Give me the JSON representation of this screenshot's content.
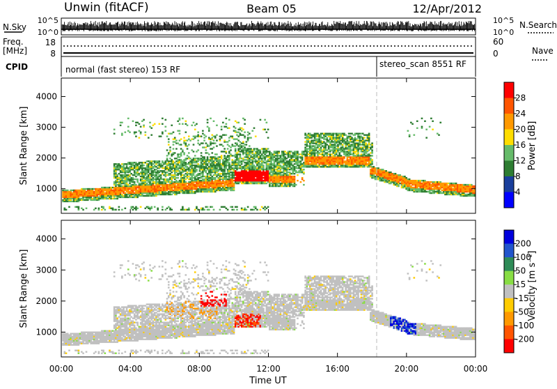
{
  "header": {
    "radar": "Unwin (fitACF)",
    "beam": "Beam 05",
    "date": "12/Apr/2012"
  },
  "status": {
    "nsky_label": "N.Sky",
    "nsky_ticks": [
      "10^5",
      "10^0"
    ],
    "nsearch_label": "N.Search",
    "freq_label_1": "Freq.",
    "freq_label_2": "[MHz]",
    "freq_ticks": [
      "18",
      "8"
    ],
    "nave_ticks": [
      "60",
      "0"
    ],
    "nave_label": "Nave",
    "cpid_label": "CPID",
    "cpid_segments": [
      {
        "label": "normal (fast stereo) 153 RF",
        "start_hour": 0
      },
      {
        "label": "stereo_scan 8551 RF",
        "start_hour": 18
      }
    ]
  },
  "chart_data": [
    {
      "type": "heatmap",
      "name": "power-panel",
      "ylabel": "Slant Range [km]",
      "x_range_hours": [
        0,
        24
      ],
      "ylim": [
        200,
        4600
      ],
      "yticks": [
        1000,
        2000,
        3000,
        4000
      ],
      "colorbar_label": "Power [dB]",
      "colorbar_ticks": [
        "28",
        "24",
        "20",
        "16",
        "12",
        "8",
        "4"
      ],
      "colorbar_colors": [
        "#0000ff",
        "#1a3f9c",
        "#2e7d32",
        "#66bb6a",
        "#ffdd00",
        "#ff9900",
        "#ff5500",
        "#ff0000"
      ]
    },
    {
      "type": "heatmap",
      "name": "velocity-panel",
      "ylabel": "Slant Range [km]",
      "x_range_hours": [
        0,
        24
      ],
      "ylim": [
        200,
        4600
      ],
      "yticks": [
        1000,
        2000,
        3000,
        4000
      ],
      "colorbar_label": "Velocity [m s⁻¹]",
      "colorbar_ticks": [
        "200",
        "100",
        "50",
        "15",
        "-15",
        "-50",
        "-100",
        "-200"
      ],
      "colorbar_colors": [
        "#ff0000",
        "#ff5500",
        "#ff9900",
        "#ffcc00",
        "#c0c0c0",
        "#88dd44",
        "#2e8b57",
        "#2255cc",
        "#0000dd"
      ]
    }
  ],
  "xaxis": {
    "ticks": [
      "00:00",
      "04:00",
      "08:00",
      "12:00",
      "16:00",
      "20:00",
      "00:00"
    ],
    "label": "Time UT"
  }
}
